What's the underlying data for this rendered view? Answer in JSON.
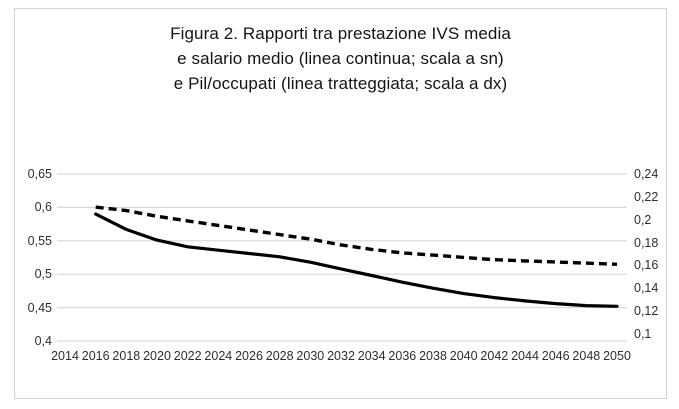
{
  "figure": {
    "title_lines": [
      "Figura 2. Rapporti  tra prestazione IVS media",
      "e salario medio (linea continua; scala a sn)",
      "e Pil/occupati (linea tratteggiata; scala a dx)"
    ]
  },
  "chart_data": {
    "type": "line",
    "title": "Figura 2. Rapporti tra prestazione IVS media e salario medio (linea continua; scala a sn) e Pil/occupati (linea tratteggiata; scala a dx)",
    "x_tick_labels": [
      "2014",
      "2016",
      "2018",
      "2020",
      "2022",
      "2024",
      "2026",
      "2028",
      "2030",
      "2032",
      "2034",
      "2036",
      "2038",
      "2040",
      "2042",
      "2044",
      "2046",
      "2048",
      "2050"
    ],
    "x_tick_values": [
      2014,
      2016,
      2018,
      2020,
      2022,
      2024,
      2026,
      2028,
      2030,
      2032,
      2034,
      2036,
      2038,
      2040,
      2042,
      2044,
      2046,
      2048,
      2050
    ],
    "left_axis": {
      "side": "left",
      "min": 0.4,
      "max": 0.65,
      "tick_labels": [
        "0,65",
        "0,6",
        "0,55",
        "0,5",
        "0,45",
        "0,4"
      ],
      "tick_values": [
        0.65,
        0.6,
        0.55,
        0.5,
        0.45,
        0.4
      ]
    },
    "right_axis": {
      "side": "right",
      "min": 0.1,
      "max": 0.24,
      "tick_labels": [
        "0,24",
        "0,22",
        "0,2",
        "0,18",
        "0,16",
        "0,14",
        "0,12",
        "0,1"
      ],
      "tick_values": [
        0.24,
        0.22,
        0.2,
        0.18,
        0.16,
        0.14,
        0.12,
        0.1
      ]
    },
    "grid": "horizontal",
    "legend": "none (described in title)",
    "series": [
      {
        "name": "Prestazione IVS media / salario medio (linea continua; scala a sn)",
        "style": "solid",
        "axis": "left",
        "color": "#000000",
        "x": [
          2016,
          2018,
          2020,
          2022,
          2024,
          2026,
          2028,
          2030,
          2032,
          2034,
          2036,
          2038,
          2040,
          2042,
          2044,
          2046,
          2048,
          2050
        ],
        "values": [
          0.59,
          0.567,
          0.551,
          0.541,
          0.536,
          0.531,
          0.526,
          0.518,
          0.508,
          0.498,
          0.488,
          0.479,
          0.471,
          0.465,
          0.46,
          0.456,
          0.453,
          0.452
        ]
      },
      {
        "name": "Pil/occupati (linea tratteggiata; scala a dx)",
        "style": "dashed",
        "axis": "right",
        "color": "#000000",
        "x": [
          2016,
          2018,
          2020,
          2022,
          2024,
          2026,
          2028,
          2030,
          2032,
          2034,
          2036,
          2038,
          2040,
          2042,
          2044,
          2046,
          2048,
          2050
        ],
        "values": [
          0.211,
          0.208,
          0.203,
          0.199,
          0.195,
          0.191,
          0.187,
          0.183,
          0.178,
          0.174,
          0.171,
          0.169,
          0.167,
          0.165,
          0.164,
          0.163,
          0.162,
          0.161
        ]
      }
    ],
    "colors": {
      "line": "#000000",
      "gridline": "#d9d9d9",
      "tick_text": "#2e2e2e",
      "frame_border": "#cfd3d6",
      "background": "#ffffff"
    }
  }
}
